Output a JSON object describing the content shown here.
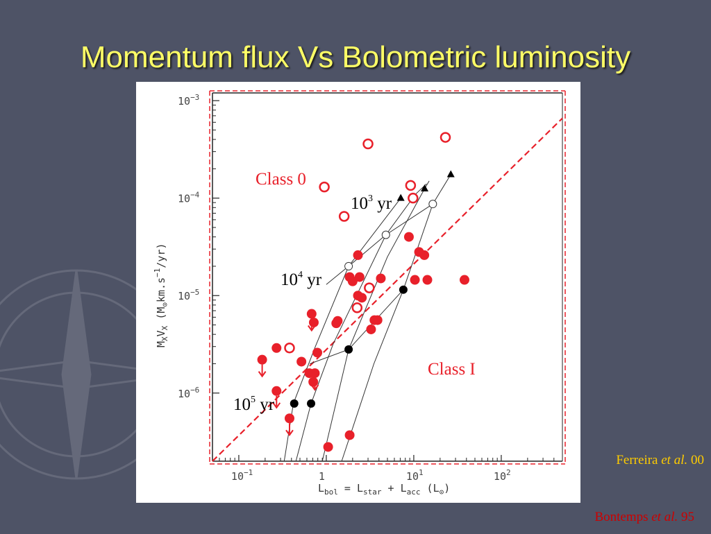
{
  "slide": {
    "title": "Momentum flux Vs Bolometric luminosity",
    "citation_1": {
      "author": "Ferreira",
      "etal": "et al.",
      "year": "00",
      "color": "#ffcc00"
    },
    "citation_2": {
      "author": "Bontemps",
      "etal": "et al.",
      "year": "95",
      "color": "#cc0000"
    },
    "colors": {
      "background": "#4e5366",
      "title": "#ffff66",
      "red": "#e8202a",
      "black": "#000000"
    }
  },
  "chart_data": {
    "type": "scatter",
    "scale": {
      "x": "log",
      "y": "log"
    },
    "xlim": [
      0.05,
      500
    ],
    "ylim": [
      2e-07,
      0.0012
    ],
    "xlabel": {
      "a": "L",
      "a_sub": "bol",
      "b": " = L",
      "b_sub": "star",
      "c": " + L",
      "c_sub": "acc",
      "d": " (L",
      "e": ")"
    },
    "ylabel": {
      "a": "M",
      "a_sub": "X",
      "b": "V",
      "b_sub": "X",
      "c": "  (M",
      "d": "km.s",
      "d_sup": "−1",
      "e": "/yr)"
    },
    "x_ticks": [
      {
        "value": 0.1,
        "base": "10",
        "exp": "−1"
      },
      {
        "value": 1,
        "base": "1",
        "exp": ""
      },
      {
        "value": 10,
        "base": "10",
        "exp": "1"
      },
      {
        "value": 100,
        "base": "10",
        "exp": "2"
      }
    ],
    "y_ticks": [
      {
        "value": 0.001,
        "base": "10",
        "exp": "−3"
      },
      {
        "value": 0.0001,
        "base": "10",
        "exp": "−4"
      },
      {
        "value": 1e-05,
        "base": "10",
        "exp": "−5"
      },
      {
        "value": 1e-06,
        "base": "10",
        "exp": "−6"
      }
    ],
    "annotations": {
      "class0": "Class 0",
      "classI": "Class I",
      "age_1e3": {
        "base": "10",
        "exp": "3",
        "unit": " yr"
      },
      "age_1e4": {
        "base": "10",
        "exp": "4",
        "unit": " yr"
      },
      "age_1e5": {
        "base": "10",
        "exp": "5",
        "unit": " yr"
      }
    },
    "series": [
      {
        "name": "",
        "marker": "open-circle",
        "color": "#e8202a",
        "points": [
          [
            3.0,
            0.00036
          ],
          [
            23,
            0.00042
          ],
          [
            0.95,
            0.00013
          ],
          [
            9.2,
            0.000135
          ],
          [
            9.8,
            0.0001
          ],
          [
            1.6,
            6.5e-05
          ],
          [
            3.1,
            1.2e-05
          ],
          [
            2.25,
            7.5e-06
          ],
          [
            0.38,
            2.9e-06
          ]
        ]
      },
      {
        "name": "",
        "marker": "filled-circle",
        "color": "#e8202a",
        "points": [
          [
            2.3,
            2.6e-05
          ],
          [
            8.8,
            4e-05
          ],
          [
            11.5,
            2.8e-05
          ],
          [
            13.2,
            2.6e-05
          ],
          [
            1.85,
            1.55e-05
          ],
          [
            2.4,
            1.55e-05
          ],
          [
            2.0,
            1.4e-05
          ],
          [
            4.2,
            1.5e-05
          ],
          [
            10.3,
            1.45e-05
          ],
          [
            14.3,
            1.45e-05
          ],
          [
            38,
            1.45e-05
          ],
          [
            2.3,
            1e-05
          ],
          [
            2.55,
            9.5e-06
          ],
          [
            0.68,
            6.5e-06
          ],
          [
            1.35,
            5.5e-06
          ],
          [
            1.3,
            5.2e-06
          ],
          [
            0.72,
            5.3e-06
          ],
          [
            3.55,
            5.6e-06
          ],
          [
            3.85,
            5.6e-06
          ],
          [
            3.25,
            4.5e-06
          ],
          [
            0.27,
            2.9e-06
          ],
          [
            0.79,
            2.6e-06
          ],
          [
            0.185,
            2.2e-06
          ],
          [
            0.52,
            2.1e-06
          ],
          [
            0.64,
            1.6e-06
          ],
          [
            0.74,
            1.6e-06
          ],
          [
            0.71,
            1.3e-06
          ],
          [
            0.27,
            1.05e-06
          ],
          [
            0.38,
            5.5e-07
          ],
          [
            1.85,
            3.7e-07
          ],
          [
            1.05,
            2.8e-07
          ]
        ]
      },
      {
        "name": "",
        "marker": "filled-circle",
        "color": "#000000",
        "points": [
          [
            0.43,
            7.8e-07
          ],
          [
            0.67,
            7.8e-07
          ],
          [
            1.8,
            2.8e-06
          ],
          [
            7.6,
            1.15e-05
          ]
        ]
      },
      {
        "name": "",
        "marker": "open-circle",
        "color": "#333333",
        "points": [
          [
            1.8,
            2e-05
          ],
          [
            4.8,
            4.2e-05
          ],
          [
            16.5,
            8.7e-05
          ]
        ]
      },
      {
        "name": "",
        "marker": "filled-triangle",
        "color": "#000000",
        "points": [
          [
            7.1,
            0.0001
          ],
          [
            13.3,
            0.000125
          ],
          [
            26.5,
            0.000175
          ]
        ]
      }
    ],
    "upper_limits": [
      [
        0.68,
        6.5e-06
      ],
      [
        0.185,
        2.2e-06
      ],
      [
        0.74,
        1.6e-06
      ],
      [
        0.27,
        1.05e-06
      ],
      [
        0.38,
        5.5e-07
      ]
    ],
    "tracks": [
      [
        [
          0.33,
          2e-07
        ],
        [
          0.42,
          7.8e-07
        ],
        [
          0.75,
          3e-06
        ],
        [
          1.8,
          2e-05
        ],
        [
          7.1,
          0.0001
        ]
      ],
      [
        [
          0.45,
          2e-07
        ],
        [
          0.67,
          7.8e-07
        ],
        [
          1.2,
          3.2e-06
        ],
        [
          4.8,
          4.2e-05
        ],
        [
          10.5,
          0.00011
        ],
        [
          14,
          0.00014
        ]
      ],
      [
        [
          0.9,
          2e-07
        ],
        [
          1.8,
          2.8e-06
        ],
        [
          5,
          2.5e-05
        ],
        [
          13.3,
          0.000125
        ],
        [
          15,
          0.00015
        ]
      ],
      [
        [
          1.5,
          2e-07
        ],
        [
          3.5,
          2e-06
        ],
        [
          7.6,
          1.15e-05
        ],
        [
          16.5,
          8.7e-05
        ],
        [
          26.5,
          0.000175
        ]
      ]
    ],
    "isochrones": [
      [
        [
          1.0,
          1.3e-05
        ],
        [
          1.8,
          2e-05
        ],
        [
          4.8,
          4.2e-05
        ],
        [
          16.5,
          8.7e-05
        ]
      ],
      [
        [
          0.65,
          2e-06
        ],
        [
          1.8,
          2.8e-06
        ],
        [
          7.6,
          1.15e-05
        ]
      ]
    ],
    "fit_line": {
      "points": [
        [
          0.05,
          2e-07
        ],
        [
          500,
          0.00066
        ]
      ],
      "color": "#e8202a"
    }
  }
}
